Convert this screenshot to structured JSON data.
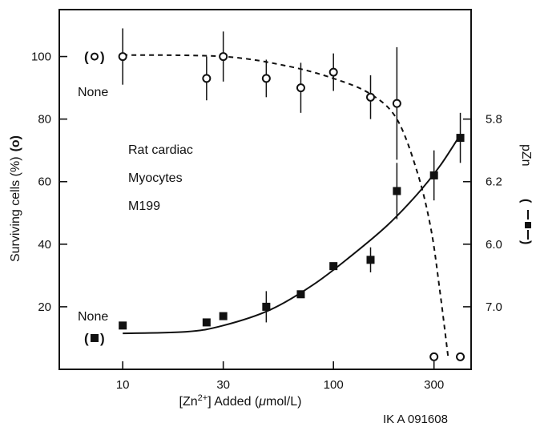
{
  "chart_data": {
    "type": "scatter",
    "xlabel_parts": [
      "[Zn",
      "2+",
      "] Added (",
      "μ",
      "mol/L)"
    ],
    "ylabel_left": "Surviving cells (%)",
    "ylabel_right": "pZn",
    "x_scale": "log",
    "xlim": [
      5,
      450
    ],
    "x_ticks": [
      10,
      30,
      100,
      300
    ],
    "x_tick_labels": [
      "10",
      "30",
      "100",
      "300"
    ],
    "ylim": [
      0,
      115
    ],
    "y_ticks": [
      20,
      40,
      60,
      80,
      100
    ],
    "y_tick_labels": [
      "20",
      "40",
      "60",
      "80",
      "100"
    ],
    "right_ticks": [
      {
        "label": "5.8",
        "at_left_value": 80
      },
      {
        "label": "6.2",
        "at_left_value": 60
      },
      {
        "label": "6.0",
        "at_left_value": 40
      },
      {
        "label": "7.0",
        "at_left_value": 20
      }
    ],
    "series": [
      {
        "marker": "open-circle",
        "line": "dashed",
        "control_label": "None",
        "control_value": 100,
        "points": [
          {
            "x": 10,
            "y": 100,
            "err": 9
          },
          {
            "x": 25,
            "y": 93,
            "err": 7
          },
          {
            "x": 30,
            "y": 100,
            "err": 8
          },
          {
            "x": 48,
            "y": 93,
            "err": 6
          },
          {
            "x": 70,
            "y": 90,
            "err": 8
          },
          {
            "x": 100,
            "y": 95,
            "err": 6
          },
          {
            "x": 150,
            "y": 87,
            "err": 7
          },
          {
            "x": 200,
            "y": 85,
            "err": 18
          },
          {
            "x": 300,
            "y": 4,
            "err": 0
          },
          {
            "x": 400,
            "y": 4,
            "err": 0
          }
        ],
        "fit": [
          [
            10,
            100.5
          ],
          [
            30,
            100
          ],
          [
            60,
            97
          ],
          [
            100,
            93
          ],
          [
            150,
            88
          ],
          [
            200,
            80
          ],
          [
            250,
            63
          ],
          [
            290,
            45
          ],
          [
            320,
            25
          ],
          [
            350,
            4
          ]
        ]
      },
      {
        "marker": "filled-square",
        "line": "solid",
        "control_label": "None",
        "control_value": 10,
        "points": [
          {
            "x": 10,
            "y": 14,
            "err": 0
          },
          {
            "x": 25,
            "y": 15,
            "err": 0
          },
          {
            "x": 30,
            "y": 17,
            "err": 0
          },
          {
            "x": 48,
            "y": 20,
            "err": 5
          },
          {
            "x": 70,
            "y": 24,
            "err": 0
          },
          {
            "x": 100,
            "y": 33,
            "err": 0
          },
          {
            "x": 150,
            "y": 35,
            "err": 4
          },
          {
            "x": 200,
            "y": 57,
            "err": 9
          },
          {
            "x": 300,
            "y": 62,
            "err": 8
          },
          {
            "x": 400,
            "y": 74,
            "err": 8
          }
        ],
        "fit": [
          [
            10,
            11.5
          ],
          [
            20,
            12
          ],
          [
            30,
            14
          ],
          [
            50,
            19
          ],
          [
            80,
            27
          ],
          [
            120,
            36
          ],
          [
            180,
            46
          ],
          [
            250,
            56
          ],
          [
            320,
            65
          ],
          [
            400,
            75
          ]
        ]
      }
    ],
    "annotations": [
      "Rat cardiac",
      "Myocytes",
      "M199"
    ],
    "credit": "IK A 091608"
  }
}
